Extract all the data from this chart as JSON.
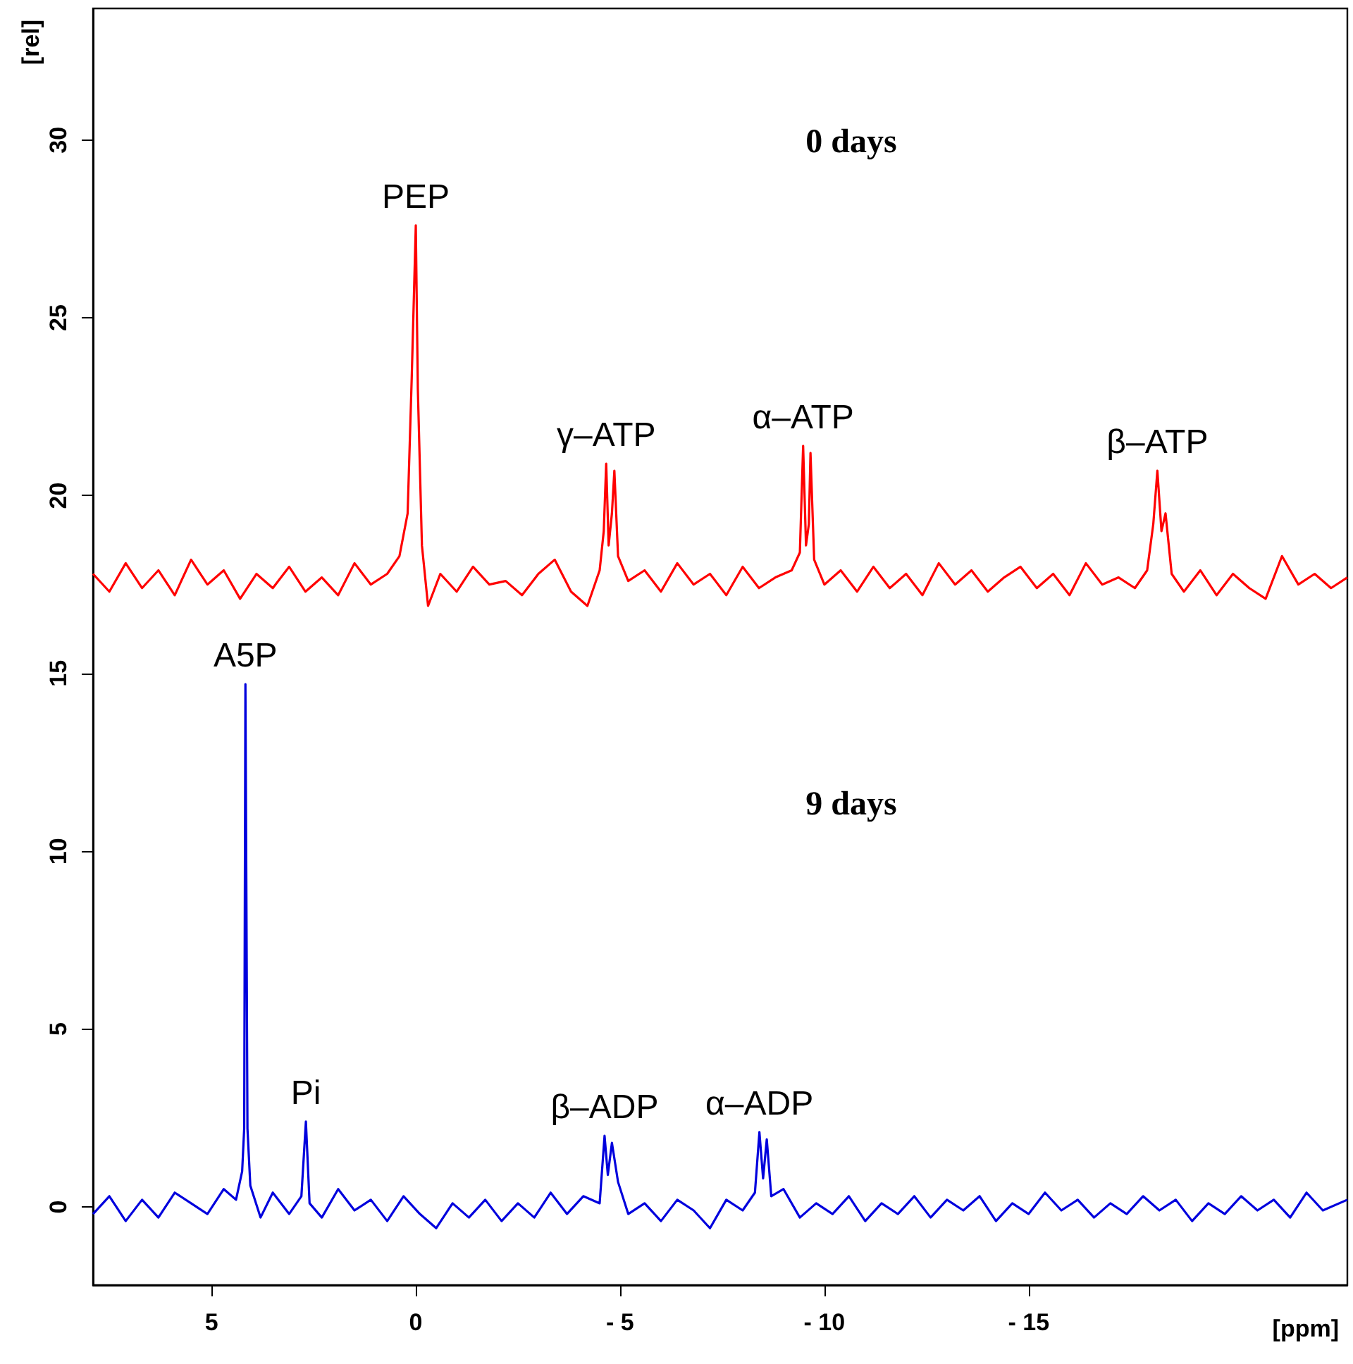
{
  "chart_data": {
    "type": "line",
    "xlabel": "[ppm]",
    "ylabel": "[rel]",
    "xlim": [
      7.9,
      -22.8
    ],
    "xticks": [
      5,
      0,
      {
        "value": -5,
        "label": "- 5"
      },
      {
        "value": -10,
        "label": "- 10"
      },
      {
        "value": -15,
        "label": "- 15"
      }
    ],
    "ylim": [
      -2.2,
      33.7
    ],
    "yticks": [
      0,
      5,
      10,
      15,
      20,
      25,
      30
    ],
    "grid": false,
    "marker": "none",
    "line_style": "solid",
    "series": [
      {
        "color": "#ff0000",
        "x": [
          7.9,
          7.5,
          7.1,
          6.7,
          6.3,
          5.9,
          5.5,
          5.1,
          4.7,
          4.3,
          3.9,
          3.5,
          3.1,
          2.7,
          2.3,
          1.9,
          1.5,
          1.1,
          0.7,
          0.4,
          0.2,
          0.1,
          0.0,
          -0.05,
          -0.15,
          -0.3,
          -0.6,
          -1.0,
          -1.4,
          -1.8,
          -2.2,
          -2.6,
          -3.0,
          -3.4,
          -3.8,
          -4.2,
          -4.5,
          -4.6,
          -4.66,
          -4.72,
          -4.8,
          -4.86,
          -4.95,
          -5.2,
          -5.6,
          -6.0,
          -6.4,
          -6.8,
          -7.2,
          -7.6,
          -8.0,
          -8.4,
          -8.8,
          -9.2,
          -9.4,
          -9.48,
          -9.55,
          -9.62,
          -9.66,
          -9.75,
          -10.0,
          -10.4,
          -10.8,
          -11.2,
          -11.6,
          -12.0,
          -12.4,
          -12.8,
          -13.2,
          -13.6,
          -14.0,
          -14.4,
          -14.8,
          -15.2,
          -15.6,
          -16.0,
          -16.4,
          -16.8,
          -17.2,
          -17.6,
          -17.9,
          -18.05,
          -18.15,
          -18.25,
          -18.35,
          -18.5,
          -18.8,
          -19.2,
          -19.6,
          -20.0,
          -20.4,
          -20.8,
          -21.2,
          -21.6,
          -22.0,
          -22.4,
          -22.8
        ],
        "values": [
          17.8,
          17.3,
          18.1,
          17.4,
          17.9,
          17.2,
          18.2,
          17.5,
          17.9,
          17.1,
          17.8,
          17.4,
          18.0,
          17.3,
          17.7,
          17.2,
          18.1,
          17.5,
          17.8,
          18.3,
          19.5,
          23.3,
          27.6,
          23.0,
          18.6,
          16.9,
          17.8,
          17.3,
          18.0,
          17.5,
          17.6,
          17.2,
          17.8,
          18.2,
          17.3,
          16.9,
          17.9,
          19.0,
          20.9,
          18.6,
          19.5,
          20.7,
          18.3,
          17.6,
          17.9,
          17.3,
          18.1,
          17.5,
          17.8,
          17.2,
          18.0,
          17.4,
          17.7,
          17.9,
          18.4,
          21.4,
          18.6,
          19.2,
          21.2,
          18.2,
          17.5,
          17.9,
          17.3,
          18.0,
          17.4,
          17.8,
          17.2,
          18.1,
          17.5,
          17.9,
          17.3,
          17.7,
          18.0,
          17.4,
          17.8,
          17.2,
          18.1,
          17.5,
          17.7,
          17.4,
          17.9,
          19.2,
          20.7,
          19.0,
          19.5,
          17.8,
          17.3,
          17.9,
          17.2,
          17.8,
          17.4,
          17.1,
          18.3,
          17.5,
          17.8,
          17.4,
          17.7
        ]
      },
      {
        "color": "#0000dd",
        "x": [
          7.9,
          7.5,
          7.1,
          6.7,
          6.3,
          5.9,
          5.5,
          5.1,
          4.7,
          4.4,
          4.25,
          4.2,
          4.17,
          4.12,
          4.05,
          3.8,
          3.5,
          3.1,
          2.8,
          2.69,
          2.6,
          2.3,
          1.9,
          1.5,
          1.1,
          0.7,
          0.3,
          -0.1,
          -0.5,
          -0.9,
          -1.3,
          -1.7,
          -2.1,
          -2.5,
          -2.9,
          -3.3,
          -3.7,
          -4.1,
          -4.5,
          -4.62,
          -4.7,
          -4.8,
          -4.95,
          -5.2,
          -5.6,
          -6.0,
          -6.4,
          -6.8,
          -7.2,
          -7.6,
          -8.0,
          -8.3,
          -8.41,
          -8.5,
          -8.59,
          -8.7,
          -9.0,
          -9.4,
          -9.8,
          -10.2,
          -10.6,
          -11.0,
          -11.4,
          -11.8,
          -12.2,
          -12.6,
          -13.0,
          -13.4,
          -13.8,
          -14.2,
          -14.6,
          -15.0,
          -15.4,
          -15.8,
          -16.2,
          -16.6,
          -17.0,
          -17.4,
          -17.8,
          -18.2,
          -18.6,
          -19.0,
          -19.4,
          -19.8,
          -20.2,
          -20.6,
          -21.0,
          -21.4,
          -21.8,
          -22.2,
          -22.8
        ],
        "values": [
          -0.2,
          0.3,
          -0.4,
          0.2,
          -0.3,
          0.4,
          0.1,
          -0.2,
          0.5,
          0.2,
          1.0,
          2.2,
          14.7,
          2.2,
          0.6,
          -0.3,
          0.4,
          -0.2,
          0.3,
          2.4,
          0.1,
          -0.3,
          0.5,
          -0.1,
          0.2,
          -0.4,
          0.3,
          -0.2,
          -0.6,
          0.1,
          -0.3,
          0.2,
          -0.4,
          0.1,
          -0.3,
          0.4,
          -0.2,
          0.3,
          0.1,
          2.0,
          0.9,
          1.8,
          0.7,
          -0.2,
          0.1,
          -0.4,
          0.2,
          -0.1,
          -0.6,
          0.2,
          -0.1,
          0.4,
          2.1,
          0.8,
          1.9,
          0.3,
          0.5,
          -0.3,
          0.1,
          -0.2,
          0.3,
          -0.4,
          0.1,
          -0.2,
          0.3,
          -0.3,
          0.2,
          -0.1,
          0.3,
          -0.4,
          0.1,
          -0.2,
          0.4,
          -0.1,
          0.2,
          -0.3,
          0.1,
          -0.2,
          0.3,
          -0.1,
          0.2,
          -0.4,
          0.1,
          -0.2,
          0.3,
          -0.1,
          0.2,
          -0.3,
          0.4,
          -0.1,
          0.2
        ]
      }
    ],
    "annotations": [
      {
        "text": "PEP",
        "x": 0.0,
        "y": 27.6
      },
      {
        "text": "γ–ATP",
        "x": -4.66,
        "y": 20.9
      },
      {
        "text": "α–ATP",
        "x": -9.48,
        "y": 21.4
      },
      {
        "text": "β–ATP",
        "x": -18.15,
        "y": 20.7
      },
      {
        "text": "A5P",
        "x": 4.17,
        "y": 14.7
      },
      {
        "text": "Pi",
        "x": 2.69,
        "y": 2.4
      },
      {
        "text": "β–ADP",
        "x": -4.62,
        "y": 2.0
      },
      {
        "text": "α–ADP",
        "x": -8.41,
        "y": 2.1
      },
      "0 days",
      "9 days"
    ]
  }
}
